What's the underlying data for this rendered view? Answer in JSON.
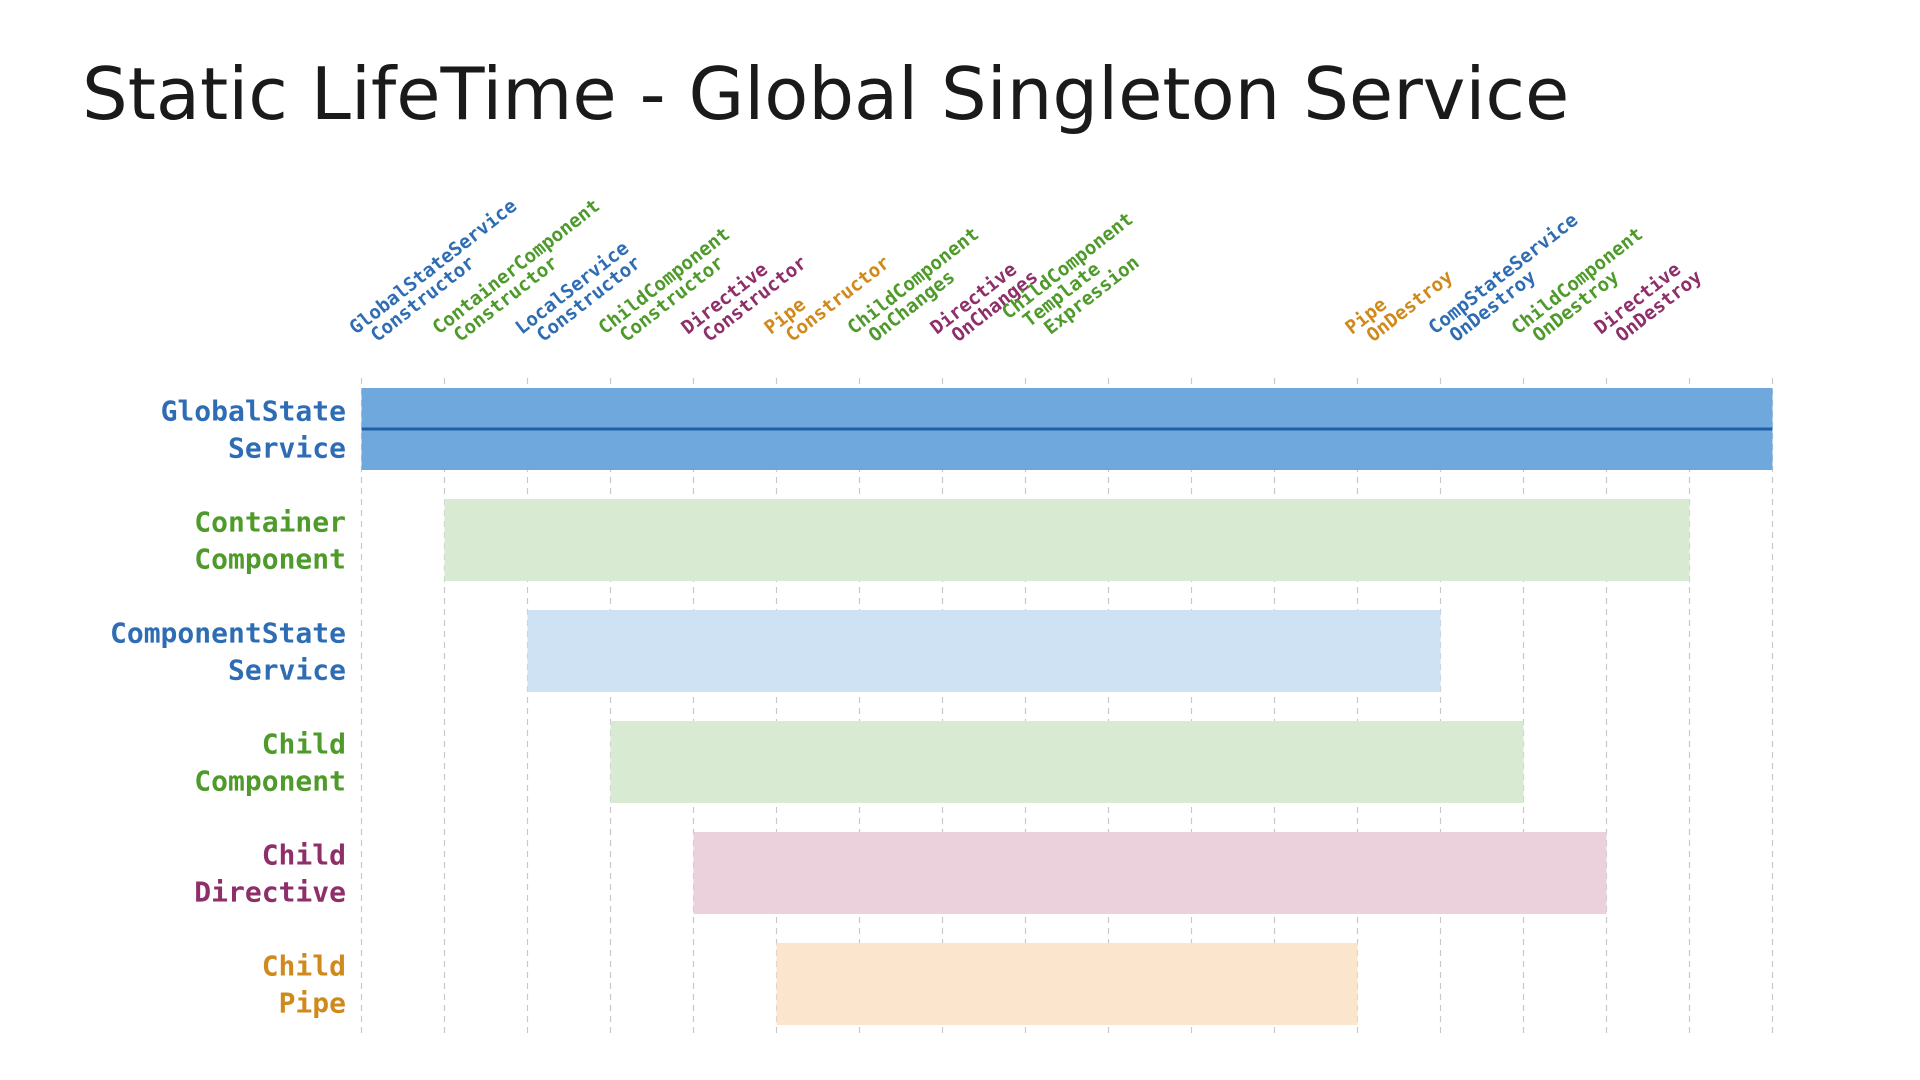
{
  "title": "Static LifeTime - Global Singleton Service",
  "colors": {
    "blue": "#2e6db4",
    "green": "#4e9a2a",
    "purple": "#8e2f6a",
    "orange": "#d08a1c",
    "bar_global": "#6fa8dc",
    "bar_global_line": "#1f5fa8",
    "bar_green": "#d9ead3",
    "bar_lightblue": "#cfe2f3",
    "bar_purple": "#ead1dc",
    "bar_orange": "#fce5cd",
    "grid": "#c8c8c8"
  },
  "events": [
    {
      "lines": [
        "GlobalStateService",
        "Constructor"
      ],
      "color": "blue"
    },
    {
      "lines": [
        "ContainerComponent",
        "Constructor"
      ],
      "color": "green"
    },
    {
      "lines": [
        "LocalService",
        "Constructor"
      ],
      "color": "blue"
    },
    {
      "lines": [
        "ChildComponent",
        "Constructor"
      ],
      "color": "green"
    },
    {
      "lines": [
        "Directive",
        "Constructor"
      ],
      "color": "purple"
    },
    {
      "lines": [
        "Pipe",
        "Constructor"
      ],
      "color": "orange"
    },
    {
      "lines": [
        "ChildComponent",
        "OnChanges"
      ],
      "color": "green"
    },
    {
      "lines": [
        "Directive",
        "OnChanges"
      ],
      "color": "purple"
    },
    {
      "lines": [
        "ChildComponent",
        "Template",
        "Expression"
      ],
      "color": "green"
    },
    {
      "lines": [
        "Pipe",
        "OnDestroy"
      ],
      "color": "orange"
    },
    {
      "lines": [
        "CompStateService",
        "OnDestroy"
      ],
      "color": "blue"
    },
    {
      "lines": [
        "ChildComponent",
        "OnDestroy"
      ],
      "color": "green"
    },
    {
      "lines": [
        "Directive",
        "OnDestroy"
      ],
      "color": "purple"
    }
  ],
  "rows": [
    {
      "lines": [
        "GlobalState",
        "Service"
      ],
      "color": "blue",
      "fill": "bar_global",
      "start": 0,
      "end": 17,
      "midline": true
    },
    {
      "lines": [
        "Container",
        "Component"
      ],
      "color": "green",
      "fill": "bar_green",
      "start": 1,
      "end": 16
    },
    {
      "lines": [
        "ComponentState",
        "Service"
      ],
      "color": "blue",
      "fill": "bar_lightblue",
      "start": 2,
      "end": 13
    },
    {
      "lines": [
        "Child",
        "Component"
      ],
      "color": "green",
      "fill": "bar_green",
      "start": 3,
      "end": 14
    },
    {
      "lines": [
        "Child",
        "Directive"
      ],
      "color": "purple",
      "fill": "bar_purple",
      "start": 4,
      "end": 15
    },
    {
      "lines": [
        "Child",
        "Pipe"
      ],
      "color": "orange",
      "fill": "bar_orange",
      "start": 5,
      "end": 12
    }
  ]
}
